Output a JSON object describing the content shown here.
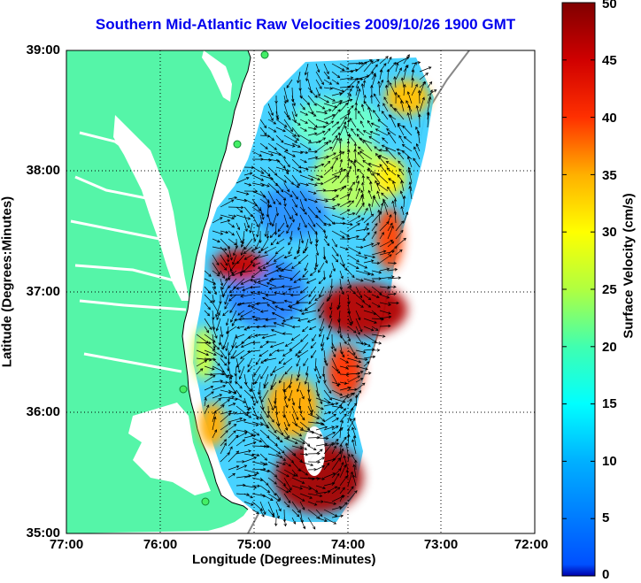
{
  "title": "Southern Mid-Atlantic Raw Velocities 2009/10/26 1900 GMT",
  "map": {
    "xlabel": "Longitude (Degrees:Minutes)",
    "ylabel": "Latitude (Degrees:Minutes)",
    "x_ticks": [
      "77:00",
      "76:00",
      "75:00",
      "74:00",
      "73:00",
      "72:00"
    ],
    "y_ticks": [
      "39:00",
      "38:00",
      "37:00",
      "36:00",
      "35:00"
    ],
    "lon_range": [
      -77,
      -72
    ],
    "lat_range": [
      35,
      39
    ],
    "land_color": "#55f5a8",
    "water_color": "#ffffff",
    "grid": "dotted"
  },
  "colorbar": {
    "label": "Surface Velocity (cm/s)",
    "ticks": [
      "50",
      "45",
      "40",
      "35",
      "30",
      "25",
      "20",
      "15",
      "10",
      "5",
      "0"
    ],
    "range": [
      0,
      50
    ],
    "colormap": "jet"
  }
}
